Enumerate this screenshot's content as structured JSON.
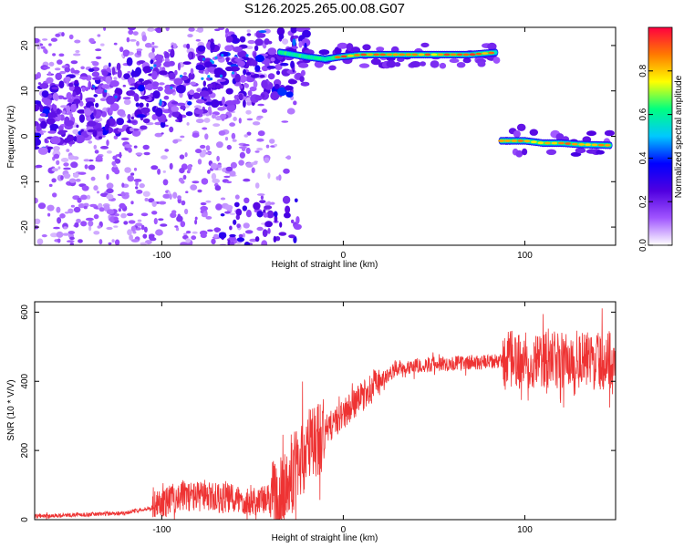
{
  "figure": {
    "title": "S126.2025.265.00.08.G07"
  },
  "chart_data": [
    {
      "type": "heatmap",
      "xlabel": "Height of straight line (km)",
      "ylabel": "Frequency (Hz)",
      "xlim": [
        -170,
        150
      ],
      "ylim": [
        -24,
        24
      ],
      "xticks": [
        -100,
        0,
        100
      ],
      "yticks": [
        -20,
        -10,
        0,
        10,
        20
      ],
      "colorbar": {
        "label": "Normalized spectral amplitude",
        "range": [
          0,
          1
        ],
        "ticks": [
          0.0,
          0.2,
          0.4,
          0.6,
          0.8
        ],
        "tick_labels": [
          "0.0",
          "0.2",
          "0.4",
          "0.6",
          "0.8"
        ],
        "colormap": [
          "#ffffff",
          "#a055ff",
          "#5000e0",
          "#0000ff",
          "#00c8ff",
          "#00ff80",
          "#ffff00",
          "#ff7a00",
          "#ff0040"
        ]
      },
      "upper_trace": {
        "x": [
          -35,
          -20,
          -10,
          -2,
          10,
          30,
          50,
          70,
          85
        ],
        "freq": [
          18.5,
          17.5,
          17,
          17.5,
          18,
          18,
          18,
          18,
          18.5
        ]
      },
      "lower_trace": {
        "x": [
          87,
          100,
          110,
          120,
          130,
          148
        ],
        "freq": [
          -1,
          -1,
          -1.5,
          -1.5,
          -1.8,
          -2
        ]
      }
    },
    {
      "type": "line",
      "xlabel": "Height of straight line (km)",
      "ylabel": "SNR (10 * V/V)",
      "xlim": [
        -170,
        150
      ],
      "ylim": [
        0,
        630
      ],
      "xticks": [
        -100,
        0,
        100
      ],
      "yticks": [
        0,
        200,
        400,
        600
      ],
      "color": "#ee3333",
      "mean_curve": {
        "x": [
          -170,
          -140,
          -120,
          -105,
          -90,
          -75,
          -50,
          -35,
          -25,
          -15,
          -5,
          5,
          20,
          30,
          50,
          80,
          90,
          120,
          150
        ],
        "y": [
          10,
          15,
          20,
          35,
          70,
          65,
          55,
          60,
          170,
          230,
          280,
          330,
          400,
          440,
          450,
          455,
          460,
          460,
          460
        ]
      }
    }
  ]
}
